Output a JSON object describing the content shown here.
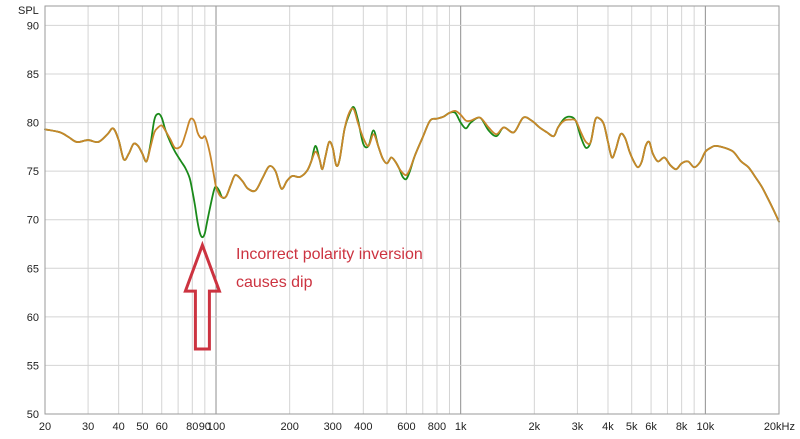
{
  "chart_data": {
    "type": "line",
    "ylabel": "SPL",
    "xscale": "log",
    "xlim": [
      20,
      20000
    ],
    "ylim": [
      50,
      92
    ],
    "yticks": [
      50,
      55,
      60,
      65,
      70,
      75,
      80,
      85,
      90
    ],
    "xticks": [
      {
        "v": 20,
        "label": "20"
      },
      {
        "v": 30,
        "label": "30"
      },
      {
        "v": 40,
        "label": "40"
      },
      {
        "v": 50,
        "label": "50"
      },
      {
        "v": 60,
        "label": "60"
      },
      {
        "v": 80,
        "label": "80"
      },
      {
        "v": 90,
        "label": "90"
      },
      {
        "v": 100,
        "label": "100"
      },
      {
        "v": 200,
        "label": "200"
      },
      {
        "v": 300,
        "label": "300"
      },
      {
        "v": 400,
        "label": "400"
      },
      {
        "v": 600,
        "label": "600"
      },
      {
        "v": 800,
        "label": "800"
      },
      {
        "v": 1000,
        "label": "1k"
      },
      {
        "v": 2000,
        "label": "2k"
      },
      {
        "v": 3000,
        "label": "3k"
      },
      {
        "v": 4000,
        "label": "4k"
      },
      {
        "v": 5000,
        "label": "5k"
      },
      {
        "v": 6000,
        "label": "6k"
      },
      {
        "v": 8000,
        "label": "8k"
      },
      {
        "v": 10000,
        "label": "10k"
      },
      {
        "v": 20000,
        "label": "20kHz"
      }
    ],
    "grid": true,
    "major_grid_x": [
      100,
      1000,
      10000
    ],
    "series": [
      {
        "color": "#1a8a1a",
        "points": [
          [
            20,
            79.3
          ],
          [
            23,
            79.0
          ],
          [
            25,
            78.5
          ],
          [
            27,
            78.0
          ],
          [
            30,
            78.2
          ],
          [
            33,
            78.0
          ],
          [
            36,
            78.8
          ],
          [
            38,
            79.4
          ],
          [
            40,
            78.2
          ],
          [
            42,
            76.2
          ],
          [
            44,
            76.8
          ],
          [
            46,
            77.8
          ],
          [
            48,
            77.6
          ],
          [
            50,
            76.8
          ],
          [
            52,
            76.0
          ],
          [
            54,
            77.8
          ],
          [
            56,
            80.3
          ],
          [
            58,
            80.9
          ],
          [
            60,
            80.5
          ],
          [
            62,
            79.3
          ],
          [
            65,
            78.0
          ],
          [
            68,
            77.0
          ],
          [
            72,
            76.0
          ],
          [
            75,
            75.3
          ],
          [
            78,
            74.3
          ],
          [
            80,
            73.0
          ],
          [
            82,
            71.5
          ],
          [
            84,
            69.8
          ],
          [
            86,
            68.6
          ],
          [
            88,
            68.2
          ],
          [
            90,
            68.6
          ],
          [
            92,
            69.8
          ],
          [
            95,
            71.5
          ],
          [
            98,
            73.0
          ],
          [
            100,
            73.4
          ],
          [
            103,
            73.0
          ],
          [
            106,
            72.3
          ],
          [
            110,
            72.4
          ],
          [
            115,
            73.6
          ],
          [
            120,
            74.6
          ],
          [
            128,
            74.0
          ],
          [
            135,
            73.2
          ],
          [
            145,
            73.0
          ],
          [
            155,
            74.3
          ],
          [
            165,
            75.5
          ],
          [
            175,
            75.0
          ],
          [
            185,
            73.2
          ],
          [
            195,
            74.0
          ],
          [
            205,
            74.5
          ],
          [
            220,
            74.4
          ],
          [
            235,
            75.0
          ],
          [
            245,
            76.0
          ],
          [
            255,
            77.6
          ],
          [
            265,
            76.2
          ],
          [
            272,
            75.2
          ],
          [
            280,
            76.5
          ],
          [
            290,
            78.0
          ],
          [
            300,
            77.4
          ],
          [
            310,
            75.6
          ],
          [
            320,
            76.2
          ],
          [
            335,
            79.3
          ],
          [
            350,
            80.8
          ],
          [
            365,
            81.6
          ],
          [
            380,
            80.3
          ],
          [
            400,
            77.8
          ],
          [
            420,
            77.6
          ],
          [
            440,
            79.2
          ],
          [
            460,
            77.6
          ],
          [
            480,
            76.3
          ],
          [
            500,
            75.8
          ],
          [
            520,
            76.4
          ],
          [
            540,
            76.0
          ],
          [
            560,
            75.3
          ],
          [
            580,
            74.4
          ],
          [
            600,
            74.2
          ],
          [
            620,
            75.0
          ],
          [
            650,
            76.6
          ],
          [
            700,
            78.5
          ],
          [
            750,
            80.2
          ],
          [
            800,
            80.4
          ],
          [
            850,
            80.6
          ],
          [
            900,
            81.0
          ],
          [
            950,
            81.0
          ],
          [
            1000,
            80.0
          ],
          [
            1050,
            79.4
          ],
          [
            1100,
            80.0
          ],
          [
            1200,
            80.5
          ],
          [
            1300,
            79.2
          ],
          [
            1400,
            78.6
          ],
          [
            1500,
            79.5
          ],
          [
            1650,
            79.0
          ],
          [
            1800,
            80.5
          ],
          [
            1950,
            80.2
          ],
          [
            2100,
            79.5
          ],
          [
            2250,
            79.0
          ],
          [
            2400,
            78.6
          ],
          [
            2500,
            79.5
          ],
          [
            2650,
            80.4
          ],
          [
            2800,
            80.6
          ],
          [
            2950,
            80.2
          ],
          [
            3100,
            78.5
          ],
          [
            3250,
            77.4
          ],
          [
            3400,
            78.0
          ],
          [
            3550,
            80.3
          ],
          [
            3700,
            80.4
          ],
          [
            3850,
            79.8
          ],
          [
            4000,
            78.0
          ],
          [
            4150,
            76.4
          ],
          [
            4300,
            77.2
          ],
          [
            4500,
            78.8
          ],
          [
            4700,
            78.4
          ],
          [
            4900,
            77.0
          ],
          [
            5100,
            76.0
          ],
          [
            5300,
            75.4
          ],
          [
            5500,
            76.0
          ],
          [
            5700,
            77.6
          ],
          [
            5900,
            78.0
          ],
          [
            6100,
            76.8
          ],
          [
            6400,
            76.0
          ],
          [
            6800,
            76.4
          ],
          [
            7200,
            75.6
          ],
          [
            7600,
            75.2
          ],
          [
            8000,
            75.8
          ],
          [
            8500,
            76.0
          ],
          [
            9000,
            75.4
          ],
          [
            9500,
            75.9
          ],
          [
            10000,
            77.0
          ],
          [
            10500,
            77.4
          ],
          [
            11000,
            77.6
          ],
          [
            12000,
            77.4
          ],
          [
            13000,
            77.0
          ],
          [
            14000,
            76.0
          ],
          [
            15000,
            75.4
          ],
          [
            16000,
            74.4
          ],
          [
            17000,
            73.4
          ],
          [
            18000,
            72.2
          ],
          [
            19000,
            71.0
          ],
          [
            20000,
            69.8
          ]
        ]
      },
      {
        "color": "#c8862a",
        "points": [
          [
            20,
            79.3
          ],
          [
            23,
            79.0
          ],
          [
            25,
            78.5
          ],
          [
            27,
            78.0
          ],
          [
            30,
            78.2
          ],
          [
            33,
            78.0
          ],
          [
            36,
            78.8
          ],
          [
            38,
            79.4
          ],
          [
            40,
            78.2
          ],
          [
            42,
            76.2
          ],
          [
            44,
            76.8
          ],
          [
            46,
            77.8
          ],
          [
            48,
            77.6
          ],
          [
            50,
            76.8
          ],
          [
            52,
            76.0
          ],
          [
            54,
            77.5
          ],
          [
            56,
            79.0
          ],
          [
            58,
            79.5
          ],
          [
            60,
            79.7
          ],
          [
            62,
            79.2
          ],
          [
            65,
            78.3
          ],
          [
            68,
            77.4
          ],
          [
            72,
            77.6
          ],
          [
            75,
            78.8
          ],
          [
            78,
            80.2
          ],
          [
            80,
            80.4
          ],
          [
            82,
            80.0
          ],
          [
            84,
            79.0
          ],
          [
            86,
            78.5
          ],
          [
            88,
            78.4
          ],
          [
            90,
            78.6
          ],
          [
            92,
            78.0
          ],
          [
            95,
            76.5
          ],
          [
            98,
            74.6
          ],
          [
            100,
            73.4
          ],
          [
            103,
            72.6
          ],
          [
            106,
            72.3
          ],
          [
            110,
            72.4
          ],
          [
            115,
            73.6
          ],
          [
            120,
            74.6
          ],
          [
            128,
            74.0
          ],
          [
            135,
            73.2
          ],
          [
            145,
            73.0
          ],
          [
            155,
            74.3
          ],
          [
            165,
            75.5
          ],
          [
            175,
            75.0
          ],
          [
            185,
            73.2
          ],
          [
            195,
            74.0
          ],
          [
            205,
            74.5
          ],
          [
            220,
            74.4
          ],
          [
            235,
            75.0
          ],
          [
            245,
            76.0
          ],
          [
            255,
            77.0
          ],
          [
            265,
            76.2
          ],
          [
            272,
            75.2
          ],
          [
            280,
            76.5
          ],
          [
            290,
            78.0
          ],
          [
            300,
            77.4
          ],
          [
            310,
            75.6
          ],
          [
            320,
            76.2
          ],
          [
            335,
            79.3
          ],
          [
            350,
            81.0
          ],
          [
            365,
            81.4
          ],
          [
            380,
            80.0
          ],
          [
            400,
            78.4
          ],
          [
            420,
            77.6
          ],
          [
            440,
            78.8
          ],
          [
            460,
            77.6
          ],
          [
            480,
            76.3
          ],
          [
            500,
            75.8
          ],
          [
            520,
            76.4
          ],
          [
            540,
            76.0
          ],
          [
            560,
            75.3
          ],
          [
            580,
            74.8
          ],
          [
            600,
            74.6
          ],
          [
            620,
            75.2
          ],
          [
            650,
            76.6
          ],
          [
            700,
            78.5
          ],
          [
            750,
            80.2
          ],
          [
            800,
            80.4
          ],
          [
            850,
            80.6
          ],
          [
            900,
            81.0
          ],
          [
            950,
            81.2
          ],
          [
            1000,
            80.8
          ],
          [
            1050,
            80.2
          ],
          [
            1100,
            80.2
          ],
          [
            1200,
            80.5
          ],
          [
            1300,
            79.5
          ],
          [
            1400,
            78.8
          ],
          [
            1500,
            79.5
          ],
          [
            1650,
            79.0
          ],
          [
            1800,
            80.5
          ],
          [
            1950,
            80.2
          ],
          [
            2100,
            79.5
          ],
          [
            2250,
            79.0
          ],
          [
            2400,
            78.6
          ],
          [
            2500,
            79.5
          ],
          [
            2650,
            80.2
          ],
          [
            2800,
            80.3
          ],
          [
            2950,
            80.2
          ],
          [
            3100,
            79.0
          ],
          [
            3250,
            78.0
          ],
          [
            3400,
            78.0
          ],
          [
            3550,
            80.3
          ],
          [
            3700,
            80.4
          ],
          [
            3850,
            79.8
          ],
          [
            4000,
            78.0
          ],
          [
            4150,
            76.4
          ],
          [
            4300,
            77.2
          ],
          [
            4500,
            78.8
          ],
          [
            4700,
            78.4
          ],
          [
            4900,
            77.0
          ],
          [
            5100,
            76.0
          ],
          [
            5300,
            75.4
          ],
          [
            5500,
            76.0
          ],
          [
            5700,
            77.6
          ],
          [
            5900,
            78.0
          ],
          [
            6100,
            76.8
          ],
          [
            6400,
            76.0
          ],
          [
            6800,
            76.4
          ],
          [
            7200,
            75.6
          ],
          [
            7600,
            75.2
          ],
          [
            8000,
            75.8
          ],
          [
            8500,
            76.0
          ],
          [
            9000,
            75.4
          ],
          [
            9500,
            75.9
          ],
          [
            10000,
            77.0
          ],
          [
            10500,
            77.4
          ],
          [
            11000,
            77.6
          ],
          [
            12000,
            77.4
          ],
          [
            13000,
            77.0
          ],
          [
            14000,
            76.0
          ],
          [
            15000,
            75.4
          ],
          [
            16000,
            74.4
          ],
          [
            17000,
            73.4
          ],
          [
            18000,
            72.2
          ],
          [
            19000,
            71.0
          ],
          [
            20000,
            69.8
          ]
        ]
      }
    ],
    "annotation": {
      "lines": [
        "Incorrect polarity inversion",
        "causes dip"
      ],
      "color": "#cc3340",
      "arrow_tip": [
        88,
        67.8
      ],
      "arrow_color": "#cc3340"
    }
  }
}
